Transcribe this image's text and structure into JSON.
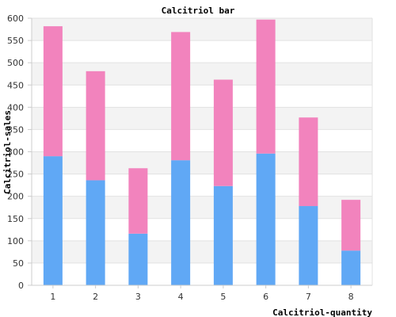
{
  "chart_data": {
    "type": "bar",
    "stacked": true,
    "title": "Calcitriol bar",
    "xlabel": "Calcitriol-quantity",
    "ylabel": "Calcitriol-sales",
    "categories": [
      "1",
      "2",
      "3",
      "4",
      "5",
      "6",
      "7",
      "8"
    ],
    "series": [
      {
        "color": "#60a8f5",
        "values": [
          290,
          236,
          116,
          281,
          223,
          296,
          178,
          78
        ]
      },
      {
        "color": "#f283bd",
        "values": [
          292,
          245,
          147,
          288,
          239,
          301,
          199,
          114
        ]
      }
    ],
    "ylim": [
      0,
      600
    ],
    "yticks": [
      0,
      50,
      100,
      150,
      200,
      250,
      300,
      350,
      400,
      450,
      500,
      550,
      600
    ],
    "grid": true,
    "banded_background": true
  }
}
